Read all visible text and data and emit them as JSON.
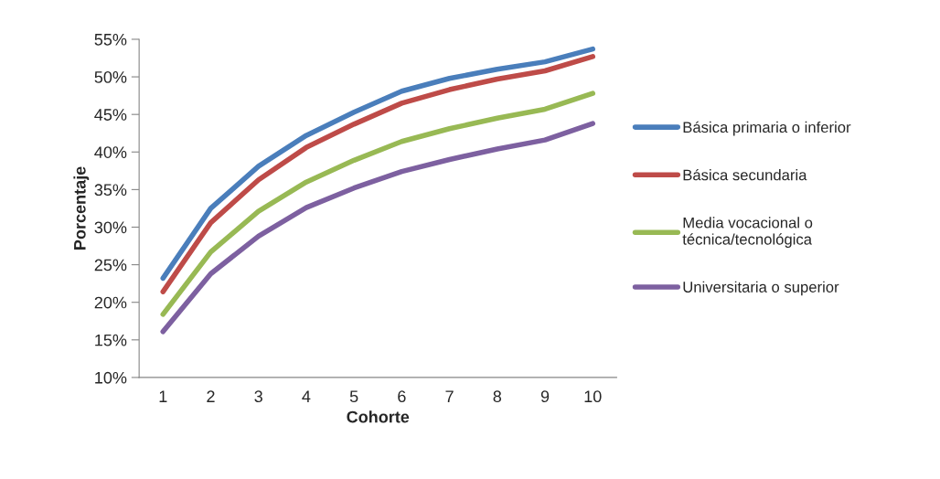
{
  "chart_data": {
    "type": "line",
    "xlabel": "Cohorte",
    "ylabel": "Porcentaje",
    "categories": [
      "1",
      "2",
      "3",
      "4",
      "5",
      "6",
      "7",
      "8",
      "9",
      "10"
    ],
    "series": [
      {
        "name": "Básica primaria o inferior",
        "color": "#4a7ebb",
        "values": [
          23.2,
          32.5,
          38.1,
          42.2,
          45.3,
          48.1,
          49.8,
          51.0,
          52.0,
          53.7
        ]
      },
      {
        "name": "Básica secundaria",
        "color": "#be4b48",
        "values": [
          21.4,
          30.6,
          36.3,
          40.6,
          43.7,
          46.5,
          48.3,
          49.7,
          50.8,
          52.7
        ]
      },
      {
        "name": "Media vocacional o\ntécnica/tecnológica",
        "color": "#98b954",
        "values": [
          18.4,
          26.7,
          32.1,
          36.0,
          38.9,
          41.4,
          43.1,
          44.5,
          45.7,
          47.8
        ]
      },
      {
        "name": "Universitaria o superior",
        "color": "#7d60a0",
        "values": [
          16.1,
          23.8,
          28.8,
          32.6,
          35.2,
          37.4,
          39.0,
          40.4,
          41.6,
          43.8
        ]
      }
    ],
    "ylim": [
      10,
      55
    ],
    "yticks": [
      {
        "value": 10,
        "label": "10%"
      },
      {
        "value": 15,
        "label": "15%"
      },
      {
        "value": 20,
        "label": "20%"
      },
      {
        "value": 25,
        "label": "25%"
      },
      {
        "value": 30,
        "label": "30%"
      },
      {
        "value": 35,
        "label": "35%"
      },
      {
        "value": 40,
        "label": "40%"
      },
      {
        "value": 45,
        "label": "45%"
      },
      {
        "value": 50,
        "label": "50%"
      },
      {
        "value": 55,
        "label": "55%"
      }
    ],
    "grid": false,
    "legend": "right",
    "marker": "none",
    "line_style": "solid"
  }
}
